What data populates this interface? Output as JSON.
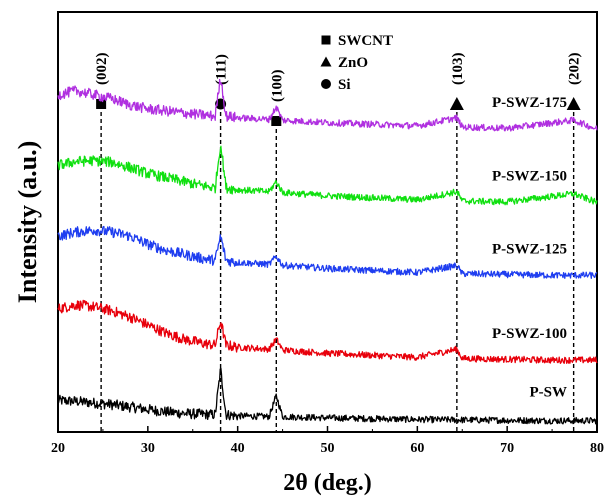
{
  "chart_data": {
    "type": "line",
    "xlabel": "2θ (deg.)",
    "ylabel": "Intensity (a.u.)",
    "xlim": [
      20,
      80
    ],
    "x_ticks": [
      20,
      30,
      40,
      50,
      60,
      70,
      80
    ],
    "x_tick_labels": [
      "20",
      "30",
      "40",
      "50",
      "60",
      "70",
      "80"
    ],
    "y_ticks_labeled": false,
    "grid": false,
    "legend": {
      "placement": "top-center",
      "entries": [
        {
          "marker": "square",
          "label": "SWCNT"
        },
        {
          "marker": "triangle",
          "label": "ZnO"
        },
        {
          "marker": "circle",
          "label": "Si"
        }
      ]
    },
    "reference_peaks": [
      {
        "x": 24.8,
        "label": "(002)",
        "marker": "square"
      },
      {
        "x": 38.1,
        "label": "(111)",
        "marker": "circle"
      },
      {
        "x": 44.3,
        "label": "(100)",
        "marker": "square"
      },
      {
        "x": 64.4,
        "label": "(103)",
        "marker": "triangle"
      },
      {
        "x": 77.4,
        "label": "(202)",
        "marker": "triangle"
      }
    ],
    "series": [
      {
        "name": "P-SW",
        "color": "#000000",
        "x": [
          20,
          22,
          24,
          26,
          28,
          30,
          32,
          34,
          36,
          37.5,
          38.1,
          38.7,
          40,
          43.5,
          44.3,
          45,
          50,
          55,
          60,
          65,
          70,
          75,
          80
        ],
        "y": [
          0.78,
          0.76,
          0.72,
          0.68,
          0.62,
          0.56,
          0.5,
          0.46,
          0.44,
          0.43,
          1.55,
          0.43,
          0.4,
          0.38,
          0.9,
          0.38,
          0.35,
          0.33,
          0.31,
          0.3,
          0.29,
          0.28,
          0.28
        ]
      },
      {
        "name": "P-SWZ-100",
        "color": "#e8000b",
        "x": [
          20,
          22,
          24,
          26,
          28,
          30,
          32,
          34,
          36,
          37.5,
          38.1,
          38.7,
          40,
          43.5,
          44.3,
          45,
          50,
          55,
          60,
          64.4,
          65,
          70,
          75,
          80
        ],
        "y": [
          3.05,
          3.15,
          3.1,
          3.0,
          2.85,
          2.65,
          2.45,
          2.3,
          2.2,
          2.15,
          2.75,
          2.15,
          2.1,
          2.05,
          2.3,
          2.03,
          1.95,
          1.9,
          1.85,
          2.05,
          1.82,
          1.8,
          1.78,
          1.78
        ]
      },
      {
        "name": "P-SWZ-125",
        "color": "#1f3ef0",
        "x": [
          20,
          22,
          24,
          26,
          28,
          30,
          32,
          34,
          36,
          37.5,
          38.1,
          38.7,
          40,
          43.5,
          44.3,
          45,
          50,
          55,
          60,
          64.4,
          65,
          70,
          75,
          80
        ],
        "y": [
          4.85,
          4.95,
          5.0,
          4.95,
          4.85,
          4.65,
          4.5,
          4.4,
          4.3,
          4.25,
          4.85,
          4.25,
          4.2,
          4.15,
          4.35,
          4.13,
          4.05,
          4.0,
          3.95,
          4.12,
          3.92,
          3.9,
          3.88,
          3.88
        ]
      },
      {
        "name": "P-SWZ-150",
        "color": "#10e010",
        "x": [
          20,
          22,
          24,
          26,
          28,
          30,
          32,
          34,
          36,
          37.5,
          38.1,
          38.7,
          40,
          43.5,
          44.3,
          45,
          50,
          55,
          60,
          64.4,
          65,
          70,
          77.4,
          80
        ],
        "y": [
          6.6,
          6.7,
          6.72,
          6.68,
          6.55,
          6.4,
          6.3,
          6.2,
          6.1,
          6.05,
          7.15,
          6.05,
          6.0,
          5.95,
          6.2,
          5.93,
          5.85,
          5.8,
          5.75,
          5.95,
          5.72,
          5.7,
          5.9,
          5.68
        ]
      },
      {
        "name": "P-SWZ-175",
        "color": "#b030e0",
        "x": [
          20,
          22,
          24,
          26,
          28,
          30,
          32,
          34,
          36,
          37.5,
          38.1,
          38.7,
          40,
          43.5,
          44.3,
          45,
          50,
          55,
          60,
          64.4,
          65,
          70,
          77.4,
          80
        ],
        "y": [
          8.35,
          8.45,
          8.35,
          8.25,
          8.1,
          8.0,
          7.95,
          7.9,
          7.85,
          7.82,
          8.8,
          7.82,
          7.78,
          7.74,
          8.05,
          7.72,
          7.66,
          7.62,
          7.58,
          7.78,
          7.55,
          7.52,
          7.72,
          7.5
        ]
      }
    ]
  }
}
